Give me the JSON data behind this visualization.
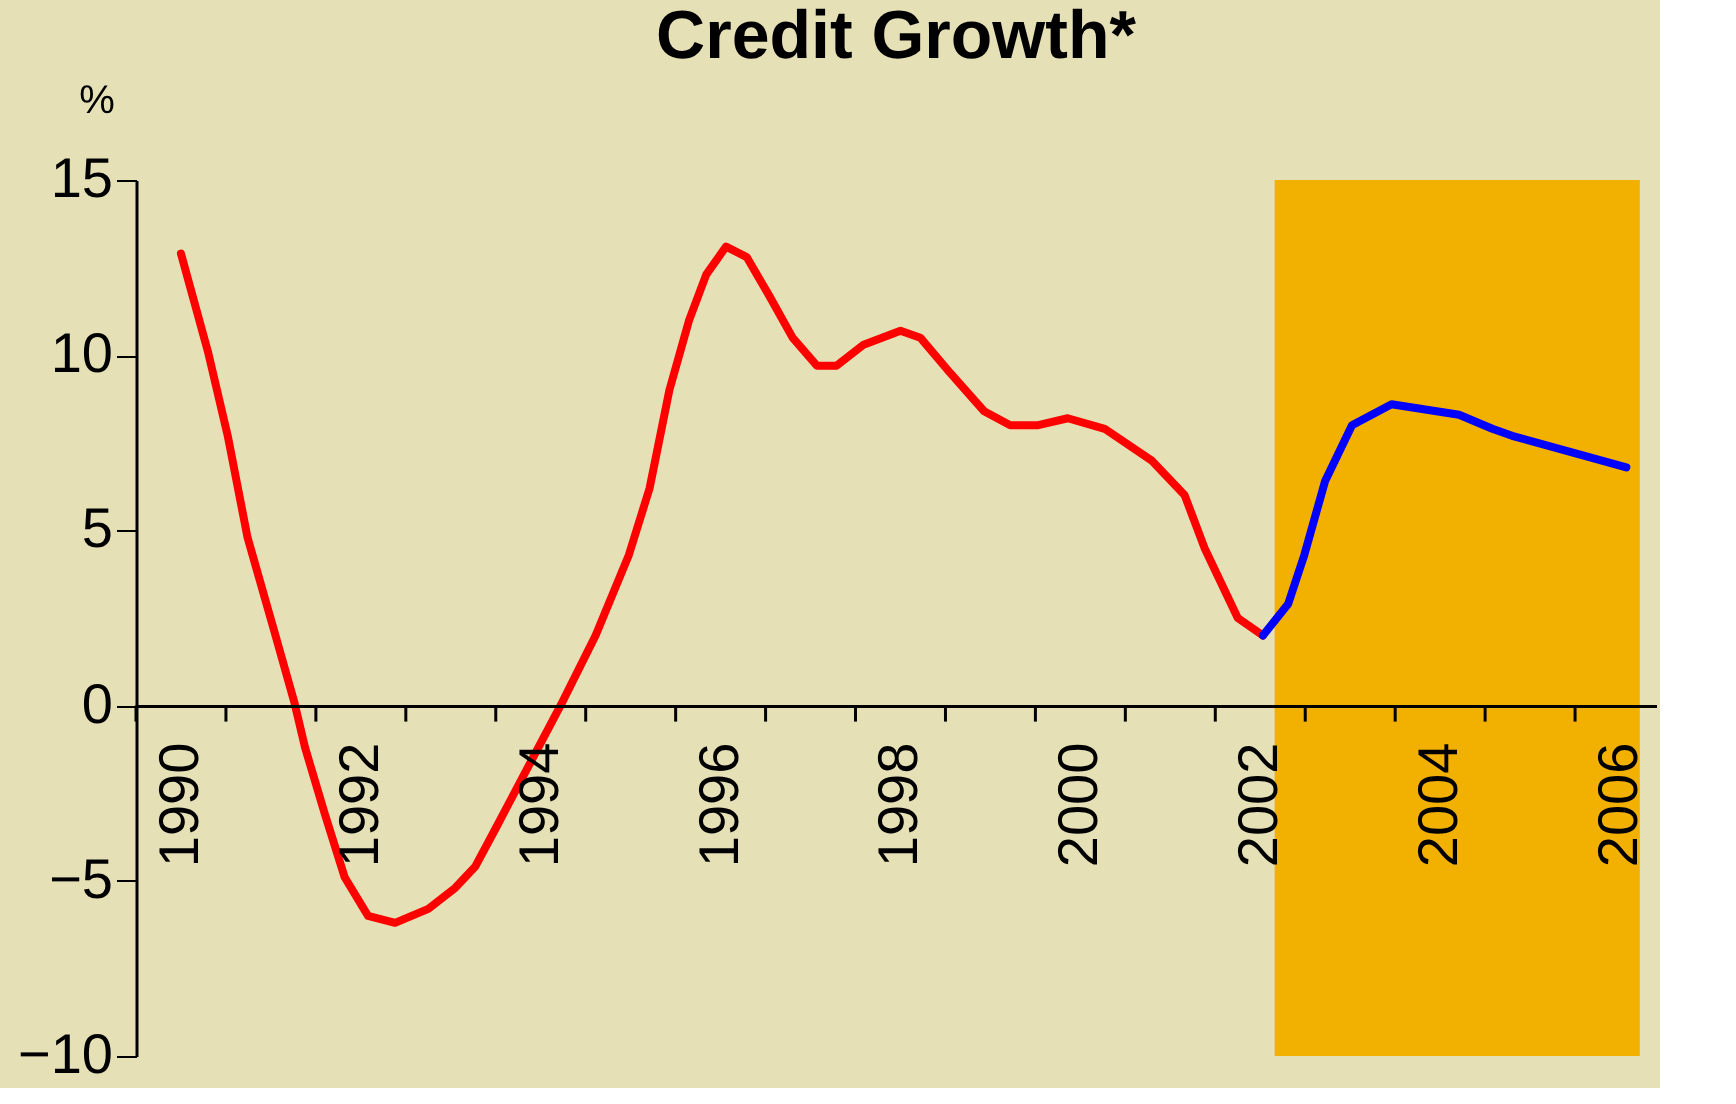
{
  "chart_data": {
    "type": "line",
    "title": "Credit Growth*",
    "ylabel": "%",
    "xlim": [
      1990,
      2006.9
    ],
    "ylim": [
      -10,
      15
    ],
    "yticks": [
      -10,
      -5,
      0,
      5,
      10,
      15
    ],
    "xticks": [
      {
        "value": 1990,
        "label": null
      },
      {
        "value": 1990.5,
        "label": "1990"
      },
      {
        "value": 1991,
        "label": null
      },
      {
        "value": 1992,
        "label": null
      },
      {
        "value": 1992.5,
        "label": "1992"
      },
      {
        "value": 1993,
        "label": null
      },
      {
        "value": 1994,
        "label": null
      },
      {
        "value": 1994.5,
        "label": "1994"
      },
      {
        "value": 1995,
        "label": null
      },
      {
        "value": 1996,
        "label": null
      },
      {
        "value": 1996.5,
        "label": "1996"
      },
      {
        "value": 1997,
        "label": null
      },
      {
        "value": 1998,
        "label": null
      },
      {
        "value": 1998.5,
        "label": "1998"
      },
      {
        "value": 1999,
        "label": null
      },
      {
        "value": 2000,
        "label": null
      },
      {
        "value": 2000.5,
        "label": "2000"
      },
      {
        "value": 2001,
        "label": null
      },
      {
        "value": 2002,
        "label": null
      },
      {
        "value": 2002.5,
        "label": "2002"
      },
      {
        "value": 2003,
        "label": null
      },
      {
        "value": 2004,
        "label": null
      },
      {
        "value": 2004.5,
        "label": "2004"
      },
      {
        "value": 2005,
        "label": null
      },
      {
        "value": 2006,
        "label": null
      },
      {
        "value": 2006.5,
        "label": "2006"
      }
    ],
    "grid": false,
    "legend": false,
    "marker": "none",
    "line_style": "solid",
    "bands": [
      {
        "axis": "x",
        "from": 2002.66,
        "to": 2006.72,
        "color": "#f2b000"
      }
    ],
    "series": [
      {
        "color": "#ff0000",
        "x": [
          1990.5,
          1990.8,
          1991.02,
          1991.24,
          1991.54,
          1991.76,
          1991.88,
          1992.1,
          1992.32,
          1992.58,
          1992.88,
          1993.25,
          1993.55,
          1993.77,
          1994.0,
          1994.37,
          1994.74,
          1995.11,
          1995.48,
          1995.71,
          1995.93,
          1996.15,
          1996.34,
          1996.56,
          1996.79,
          1997.04,
          1997.3,
          1997.57,
          1997.79,
          1998.09,
          1998.5,
          1998.72,
          1999.05,
          1999.43,
          1999.72,
          2000.02,
          2000.36,
          2000.77,
          2001.29,
          2001.66,
          2001.88,
          2002.25,
          2002.53
        ],
        "values": [
          12.9,
          10.1,
          7.7,
          4.8,
          2.1,
          0.1,
          -1.2,
          -3.1,
          -4.9,
          -6.0,
          -6.2,
          -5.8,
          -5.2,
          -4.6,
          -3.5,
          -1.7,
          0.1,
          2.0,
          4.3,
          6.2,
          9.0,
          11.0,
          12.3,
          13.1,
          12.8,
          11.7,
          10.5,
          9.7,
          9.7,
          10.3,
          10.7,
          10.5,
          9.5,
          8.4,
          8.0,
          8.0,
          8.2,
          7.9,
          7.0,
          6.0,
          4.5,
          2.5,
          2.0
        ]
      },
      {
        "color": "#0000ff",
        "x": [
          2002.53,
          2002.81,
          2002.99,
          2003.22,
          2003.52,
          2003.96,
          2004.71,
          2005.08,
          2005.3,
          2006.57
        ],
        "values": [
          2.0,
          2.9,
          4.3,
          6.4,
          8.0,
          8.6,
          8.3,
          7.9,
          7.7,
          6.8
        ]
      }
    ]
  }
}
